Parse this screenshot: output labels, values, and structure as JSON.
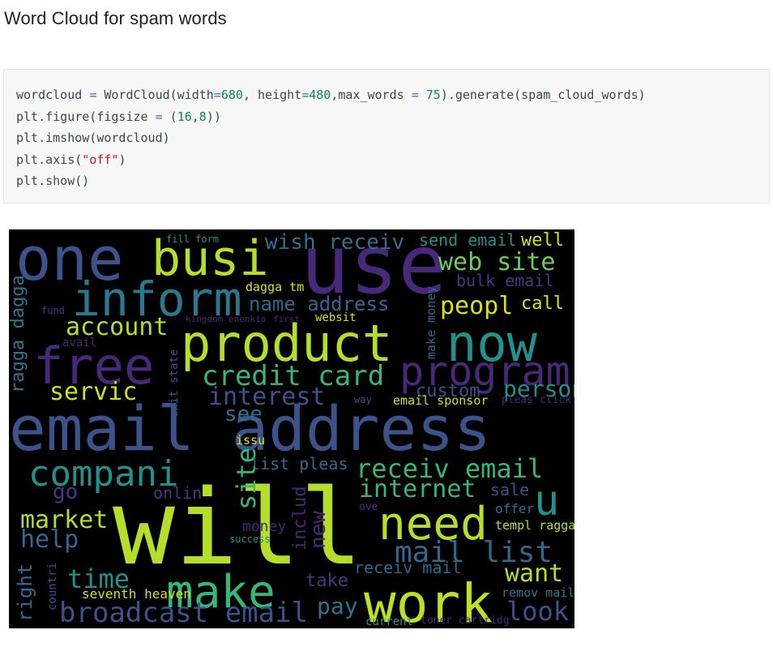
{
  "page": {
    "title": "Word Cloud for spam words"
  },
  "code": {
    "lines": [
      {
        "tokens": [
          {
            "t": "wordcloud ",
            "c": "plain"
          },
          {
            "t": "=",
            "c": "op"
          },
          {
            "t": " WordCloud(width",
            "c": "plain"
          },
          {
            "t": "=",
            "c": "op"
          },
          {
            "t": "680",
            "c": "num"
          },
          {
            "t": ", height",
            "c": "plain"
          },
          {
            "t": "=",
            "c": "op"
          },
          {
            "t": "480",
            "c": "num"
          },
          {
            "t": ",max_words ",
            "c": "plain"
          },
          {
            "t": "=",
            "c": "op"
          },
          {
            "t": " ",
            "c": "plain"
          },
          {
            "t": "75",
            "c": "num"
          },
          {
            "t": ").generate(spam_cloud_words)",
            "c": "plain"
          }
        ]
      },
      {
        "tokens": [
          {
            "t": "plt.figure(figsize ",
            "c": "plain"
          },
          {
            "t": "=",
            "c": "op"
          },
          {
            "t": " (",
            "c": "plain"
          },
          {
            "t": "16",
            "c": "num"
          },
          {
            "t": ",",
            "c": "plain"
          },
          {
            "t": "8",
            "c": "num"
          },
          {
            "t": "))",
            "c": "plain"
          }
        ]
      },
      {
        "tokens": [
          {
            "t": "plt.imshow(wordcloud)",
            "c": "plain"
          }
        ]
      },
      {
        "tokens": [
          {
            "t": "plt.axis(",
            "c": "plain"
          },
          {
            "t": "\"off\"",
            "c": "str"
          },
          {
            "t": ")",
            "c": "plain"
          }
        ]
      },
      {
        "tokens": [
          {
            "t": "plt.show()",
            "c": "plain"
          }
        ]
      }
    ]
  },
  "colors": {
    "code_operator": "#4169c8",
    "code_number": "#098658",
    "code_string": "#c41a16",
    "code_text": "#37474f",
    "cloud_background": "#000000"
  },
  "wordcloud": {
    "words": [
      {
        "text": "one",
        "color": "#3b528b"
      },
      {
        "text": "busi",
        "color": "#b5de2b"
      },
      {
        "text": "use",
        "color": "#482878"
      },
      {
        "text": "inform",
        "color": "#2a788e"
      },
      {
        "text": "product",
        "color": "#b5de2b"
      },
      {
        "text": "now",
        "color": "#21918c"
      },
      {
        "text": "free",
        "color": "#482878"
      },
      {
        "text": "program",
        "color": "#482878"
      },
      {
        "text": "email address",
        "color": "#3b528b"
      },
      {
        "text": "will",
        "color": "#b5de2b"
      },
      {
        "text": "compani",
        "color": "#21918c"
      },
      {
        "text": "need",
        "color": "#b5de2b"
      },
      {
        "text": "make",
        "color": "#35b779"
      },
      {
        "text": "work",
        "color": "#bddf26"
      },
      {
        "text": "credit card",
        "color": "#35b779"
      },
      {
        "text": "web site",
        "color": "#6ccd5a"
      },
      {
        "text": "account",
        "color": "#b5de2b"
      },
      {
        "text": "servic",
        "color": "#d0e11c"
      },
      {
        "text": "peopl",
        "color": "#d8e219"
      },
      {
        "text": "wish receiv",
        "color": "#2c728e"
      },
      {
        "text": "name address",
        "color": "#31688e"
      },
      {
        "text": "interest",
        "color": "#3b528b"
      },
      {
        "text": "receiv email",
        "color": "#35b779"
      },
      {
        "text": "internet",
        "color": "#35b779"
      },
      {
        "text": "u",
        "color": "#21918c"
      },
      {
        "text": "market",
        "color": "#b5de2b"
      },
      {
        "text": "mail list",
        "color": "#31688e"
      },
      {
        "text": "broadcast email",
        "color": "#3b528b"
      },
      {
        "text": "time",
        "color": "#21918c"
      },
      {
        "text": "want",
        "color": "#b5de2b"
      },
      {
        "text": "look",
        "color": "#3b528b"
      },
      {
        "text": "pay",
        "color": "#2c728e"
      },
      {
        "text": "help",
        "color": "#31688e"
      },
      {
        "text": "site",
        "color": "#35b779"
      },
      {
        "text": "go",
        "color": "#443983"
      },
      {
        "text": "person",
        "color": "#21918c"
      },
      {
        "text": "see",
        "color": "#2c728e"
      },
      {
        "text": "custom",
        "color": "#3b528b"
      },
      {
        "text": "call",
        "color": "#d8e219"
      },
      {
        "text": "send email",
        "color": "#21918c"
      },
      {
        "text": "well",
        "color": "#d0e11c"
      },
      {
        "text": "bulk email",
        "color": "#443983"
      },
      {
        "text": "ragga dagga",
        "color": "#2a788e"
      },
      {
        "text": "dagga tm",
        "color": "#d8e219"
      },
      {
        "text": "websit",
        "color": "#d0e11c"
      },
      {
        "text": "make money",
        "color": "#31688e"
      },
      {
        "text": "unit state",
        "color": "#3b528b"
      },
      {
        "text": "list pleas",
        "color": "#31688e"
      },
      {
        "text": "onlin",
        "color": "#443983"
      },
      {
        "text": "includ",
        "color": "#482878"
      },
      {
        "text": "new",
        "color": "#482878"
      },
      {
        "text": "money",
        "color": "#482878"
      },
      {
        "text": "sale",
        "color": "#3b528b"
      },
      {
        "text": "offer",
        "color": "#2c728e"
      },
      {
        "text": "templ ragga",
        "color": "#b5de2b"
      },
      {
        "text": "take",
        "color": "#443983"
      },
      {
        "text": "receiv mail",
        "color": "#31688e"
      },
      {
        "text": "right",
        "color": "#31688e"
      },
      {
        "text": "countri",
        "color": "#3b528b"
      },
      {
        "text": "seventh heaven",
        "color": "#d0e11c"
      },
      {
        "text": "remov mail",
        "color": "#2a788e"
      },
      {
        "text": "current",
        "color": "#1f9e89"
      },
      {
        "text": "toner cartridg",
        "color": "#482878"
      },
      {
        "text": "fill form",
        "color": "#21918c"
      },
      {
        "text": "fund",
        "color": "#443983"
      },
      {
        "text": "avail",
        "color": "#482878"
      },
      {
        "text": "kingdom enenkio",
        "color": "#482878"
      },
      {
        "text": "first",
        "color": "#482878"
      },
      {
        "text": "way",
        "color": "#3b528b"
      },
      {
        "text": "email sponsor",
        "color": "#d0e11c"
      },
      {
        "text": "pleas click",
        "color": "#482878"
      },
      {
        "text": "issu",
        "color": "#d8e219"
      },
      {
        "text": "ove",
        "color": "#443983"
      },
      {
        "text": "success",
        "color": "#21918c"
      }
    ]
  }
}
